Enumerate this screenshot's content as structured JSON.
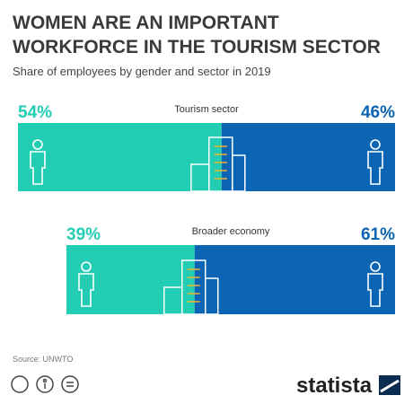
{
  "chart_data": {
    "type": "bar",
    "orientation": "horizontal",
    "stacked": true,
    "title": "WOMEN ARE AN IMPORTANT WORKFORCE IN THE TOURISM SECTOR",
    "subtitle": "Share of employees by gender and sector in 2019",
    "categories": [
      "Tourism sector",
      "Broader economy"
    ],
    "xlim": [
      0,
      100
    ],
    "series": [
      {
        "color": "#22cdb3",
        "values": [
          54,
          39
        ],
        "value_labels": [
          "54%",
          "39%"
        ]
      },
      {
        "color": "#0b64b4",
        "values": [
          46,
          61
        ],
        "value_labels": [
          "46%",
          "61%"
        ]
      }
    ],
    "source": "Source: UNWTO",
    "logo": "statista"
  }
}
